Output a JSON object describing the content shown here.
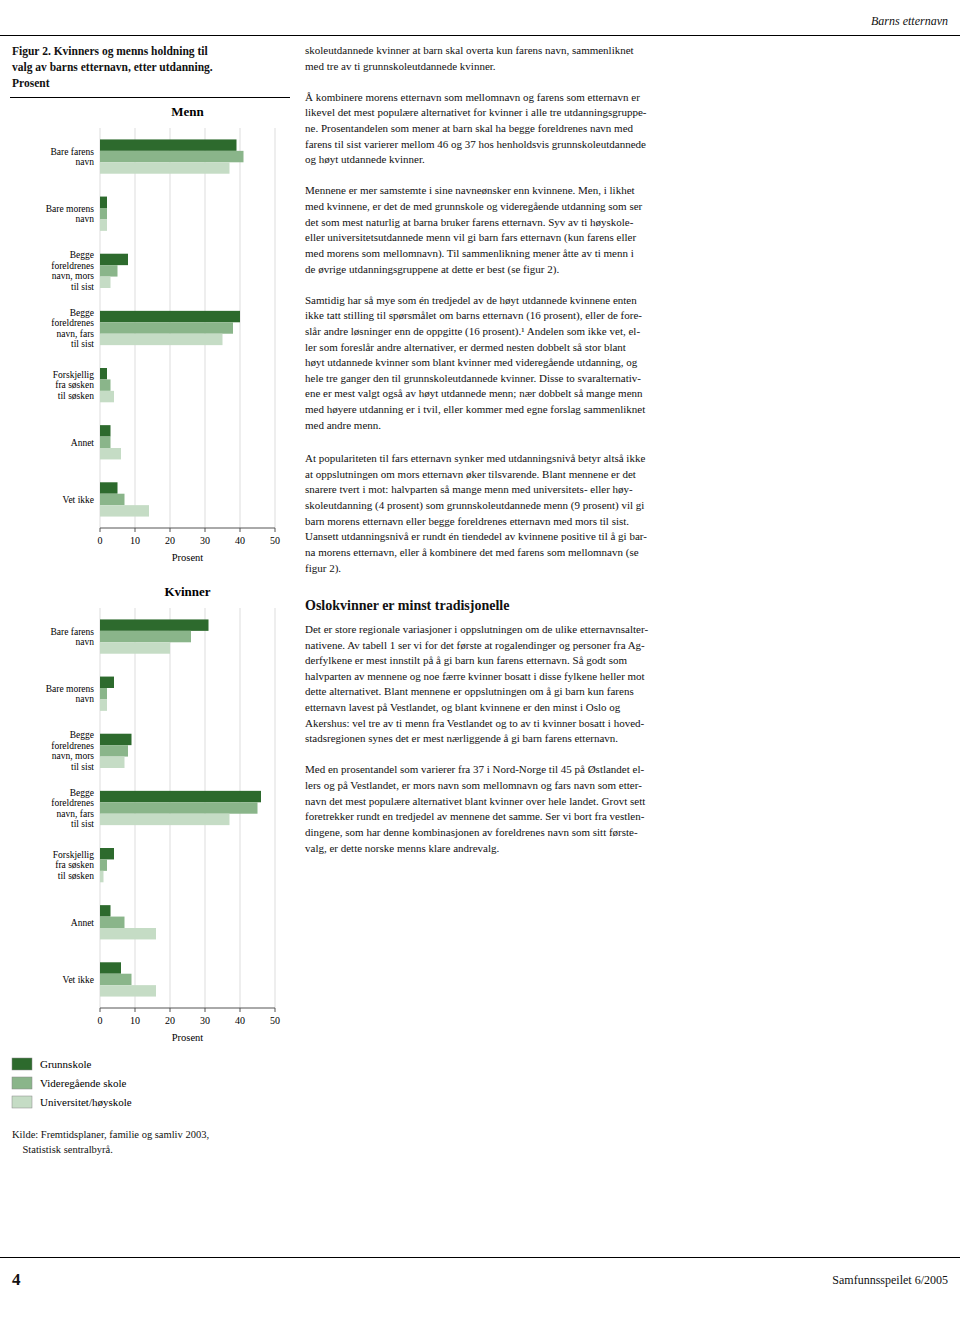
{
  "header": "Barns etternavn",
  "figure_title": "Figur 2. Kvinners og menns holdning til\nvalg av barns etternavn, etter utdanning.\nProsent",
  "chart_data": [
    {
      "type": "bar",
      "orientation": "horizontal",
      "title": "Menn",
      "x_label": "Prosent",
      "categories": [
        "Bare farens\nnavn",
        "Bare morens\nnavn",
        "Begge\nforeldrenes\nnavn, mors\ntil sist",
        "Begge\nforeldrenes\nnavn, fars\ntil sist",
        "Forskjellig\nfra søsken\ntil søsken",
        "Annet",
        "Vet ikke"
      ],
      "series": [
        {
          "name": "Grunnskole",
          "color": "#2d6a2d",
          "values": [
            39,
            2,
            8,
            40,
            2,
            3,
            5
          ]
        },
        {
          "name": "Videregående skole",
          "color": "#8ab58a",
          "values": [
            41,
            2,
            5,
            38,
            3,
            3,
            7
          ]
        },
        {
          "name": "Universitet/høyskole",
          "color": "#c5dcc5",
          "values": [
            37,
            2,
            3,
            35,
            4,
            6,
            14
          ]
        }
      ],
      "xlim": [
        0,
        50
      ],
      "xticks": [
        0,
        10,
        20,
        30,
        40,
        50
      ],
      "grid": true
    },
    {
      "type": "bar",
      "orientation": "horizontal",
      "title": "Kvinner",
      "x_label": "Prosent",
      "categories": [
        "Bare farens\nnavn",
        "Bare morens\nnavn",
        "Begge\nforeldrenes\nnavn, mors\ntil sist",
        "Begge\nforeldrenes\nnavn, fars\ntil sist",
        "Forskjellig\nfra søsken\ntil søsken",
        "Annet",
        "Vet ikke"
      ],
      "series": [
        {
          "name": "Grunnskole",
          "color": "#2d6a2d",
          "values": [
            31,
            4,
            9,
            46,
            4,
            3,
            6
          ]
        },
        {
          "name": "Videregående skole",
          "color": "#8ab58a",
          "values": [
            26,
            2,
            8,
            45,
            2,
            7,
            9
          ]
        },
        {
          "name": "Universitet/høyskole",
          "color": "#c5dcc5",
          "values": [
            20,
            2,
            7,
            37,
            1,
            16,
            16
          ]
        }
      ],
      "xlim": [
        0,
        50
      ],
      "xticks": [
        0,
        10,
        20,
        30,
        40,
        50
      ],
      "grid": true,
      "legend": "bottom"
    }
  ],
  "source": "Kilde: Fremtidsplaner, familie og samliv 2003,\n    Statistisk sentralbyrå.",
  "page_number": "4",
  "footer": "Samfunnsspeilet 6/2005",
  "body_text": [
    "skoleutdannede kvinner at barn skal overta kun farens navn, sammenliknet\nmed tre av ti grunnskoleutdannede kvinner.\n\nÅ kombinere morens etternavn som mellomnavn og farens som etternavn er\nlikevel det mest populære alternativet for kvinner i alle tre utdanningsgruppe-\nne. Prosentandelen som mener at barn skal ha begge foreldrenes navn med\nfarens til sist varierer mellom 46 og 37 hos henholdsvis grunnskoleutdannede\nog høyt utdannede kvinner.\n\nMennene er mer samstemte i sine navneønsker enn kvinnene. Men, i likhet\nmed kvinnene, er det de med grunnskole og videregående utdanning som ser\ndet som mest naturlig at barna bruker farens etternavn. Syv av ti høyskole-\neller universitetsutdannede menn vil gi barn fars etternavn (kun farens eller\nmed morens som mellomnavn). Til sammenlikning mener åtte av ti menn i\nde øvrige utdanningsgruppene at dette er best (se figur 2).\n\nSamtidig har så mye som én tredjedel av de høyt utdannede kvinnene enten\nikke tatt stilling til spørsmålet om barns etternavn (16 prosent), eller de fore-\nslår andre løsninger enn de oppgitte (16 prosent).¹ Andelen som ikke vet, el-\nler som foreslår andre alternativer, er dermed nesten dobbelt så stor blant\nhøyt utdannede kvinner som blant kvinner med videregående utdanning, og\nhele tre ganger den til grunnskoleutdannede kvinner. Disse to svaralternativ-\nene er mest valgt også av høyt utdannede menn; nær dobbelt så mange menn\nmed høyere utdanning er i tvil, eller kommer med egne forslag sammenliknet\nmed andre menn.",
    "At populariteten til fars etternavn synker med utdanningsnivå betyr altså ikke\nat oppslutningen om mors etternavn øker tilsvarende. Blant mennene er det\nsnarere tvert i mot: halvparten så mange menn med universitets- eller høy-\nskoleutdanning (4 prosent) som grunnskoleutdannede menn (9 prosent) vil gi\nbarn morens etternavn eller begge foreldrenes etternavn med mors til sist.\nUansett utdanningsnivå er rundt én tiendedel av kvinnene positive til å gi bar-\nna morens etternavn, eller å kombinere det med farens som mellomnavn (se\nfigur 2)."
  ],
  "section_heading": "Oslokvinner er minst tradisjonelle",
  "section_text": "Det er store regionale variasjoner i oppslutningen om de ulike etternavnsalter-\nnativene. Av tabell 1 ser vi for det første at rogalendinger og personer fra Ag-\nderfylkene er mest innstilt på å gi barn kun farens etternavn. Så godt som\nhalvparten av mennene og noe færre kvinner bosatt i disse fylkene heller mot\ndette alternativet. Blant mennene er oppslutningen om å gi barn kun farens\netternavn lavest på Vestlandet, og blant kvinnene er den minst i Oslo og\nAkershus: vel tre av ti menn fra Vestlandet og to av ti kvinner bosatt i hoved-\nstadsregionen synes det er mest nærliggende å gi barn farens etternavn.\n\nMed en prosentandel som varierer fra 37 i Nord-Norge til 45 på Østlandet el-\nlers og på Vestlandet, er mors navn som mellomnavn og fars navn som etter-\nnavn det mest populære alternativet blant kvinner over hele landet. Grovt sett\nforetrekker rundt en tredjedel av mennene det samme. Ser vi bort fra vestlen-\ndingene, som har denne kombinasjonen av foreldrenes navn som sitt første-\nvalg, er dette norske menns klare andrevalg."
}
